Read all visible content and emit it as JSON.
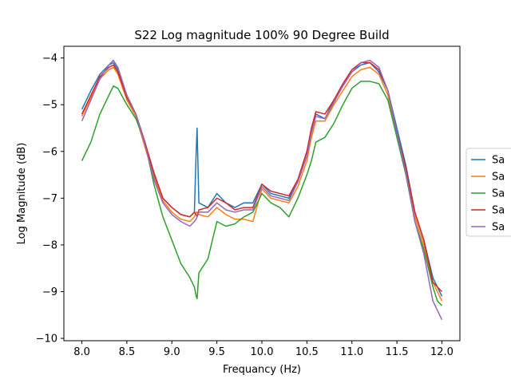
{
  "chart_data": {
    "type": "line",
    "title": "S22 Log magnitude 100% 90 Degree Build",
    "xlabel": "Frequancy (Hz)",
    "ylabel": "Log Magnitude (dB)",
    "xlim": [
      7.8,
      12.2
    ],
    "ylim": [
      -10.05,
      -3.75
    ],
    "x_ticks": [
      8.0,
      8.5,
      9.0,
      9.5,
      10.0,
      10.5,
      11.0,
      11.5,
      12.0
    ],
    "x_tick_labels": [
      "8.0",
      "8.5",
      "9.0",
      "9.5",
      "10.0",
      "10.5",
      "11.0",
      "11.5",
      "12.0"
    ],
    "y_ticks": [
      -10,
      -9,
      -8,
      -7,
      -6,
      -5,
      -4
    ],
    "y_tick_labels": [
      "−10",
      "−9",
      "−8",
      "−7",
      "−6",
      "−5",
      "−4"
    ],
    "grid": false,
    "legend_position": "right, partially cut off",
    "x": [
      8.0,
      8.1,
      8.2,
      8.3,
      8.35,
      8.4,
      8.5,
      8.6,
      8.7,
      8.8,
      8.9,
      9.0,
      9.1,
      9.2,
      9.25,
      9.27,
      9.28,
      9.3,
      9.4,
      9.5,
      9.6,
      9.7,
      9.8,
      9.9,
      10.0,
      10.1,
      10.2,
      10.3,
      10.4,
      10.5,
      10.55,
      10.6,
      10.7,
      10.8,
      10.9,
      11.0,
      11.1,
      11.2,
      11.3,
      11.4,
      11.5,
      11.6,
      11.7,
      11.8,
      11.9,
      11.95,
      12.0
    ],
    "series": [
      {
        "name": "Sa",
        "color": "#1f77b4",
        "values": [
          -5.1,
          -4.7,
          -4.35,
          -4.15,
          -4.1,
          -4.25,
          -4.8,
          -5.2,
          -5.8,
          -6.5,
          -7.0,
          -7.2,
          -7.35,
          -7.4,
          -7.3,
          -6.0,
          -5.5,
          -7.1,
          -7.2,
          -6.9,
          -7.1,
          -7.2,
          -7.1,
          -7.1,
          -6.7,
          -6.9,
          -6.95,
          -7.0,
          -6.6,
          -6.0,
          -5.6,
          -5.2,
          -5.3,
          -4.9,
          -4.6,
          -4.3,
          -4.15,
          -4.1,
          -4.3,
          -4.7,
          -5.5,
          -6.3,
          -7.3,
          -7.9,
          -8.7,
          -8.9,
          -9.1
        ]
      },
      {
        "name": "Sa",
        "color": "#ff7f0e",
        "values": [
          -5.25,
          -4.85,
          -4.45,
          -4.25,
          -4.2,
          -4.35,
          -4.9,
          -5.25,
          -5.9,
          -6.55,
          -7.05,
          -7.3,
          -7.45,
          -7.5,
          -7.4,
          -7.3,
          -7.3,
          -7.35,
          -7.4,
          -7.2,
          -7.35,
          -7.45,
          -7.45,
          -7.5,
          -6.8,
          -7.0,
          -7.05,
          -7.1,
          -6.75,
          -6.2,
          -5.7,
          -5.35,
          -5.35,
          -5.0,
          -4.7,
          -4.4,
          -4.25,
          -4.2,
          -4.35,
          -4.8,
          -5.6,
          -6.4,
          -7.4,
          -8.0,
          -8.8,
          -9.0,
          -9.2
        ]
      },
      {
        "name": "Sa",
        "color": "#2ca02c",
        "values": [
          -6.2,
          -5.8,
          -5.2,
          -4.8,
          -4.6,
          -4.65,
          -5.0,
          -5.3,
          -5.8,
          -6.7,
          -7.4,
          -7.9,
          -8.4,
          -8.7,
          -8.9,
          -9.1,
          -9.15,
          -8.6,
          -8.3,
          -7.5,
          -7.6,
          -7.55,
          -7.4,
          -7.3,
          -6.9,
          -7.1,
          -7.2,
          -7.4,
          -7.0,
          -6.5,
          -6.2,
          -5.8,
          -5.7,
          -5.4,
          -5.0,
          -4.65,
          -4.5,
          -4.5,
          -4.55,
          -4.9,
          -5.7,
          -6.5,
          -7.5,
          -8.1,
          -8.9,
          -9.2,
          -9.3
        ]
      },
      {
        "name": "Sa",
        "color": "#d62728",
        "values": [
          -5.2,
          -4.8,
          -4.4,
          -4.2,
          -4.15,
          -4.3,
          -4.85,
          -5.2,
          -5.8,
          -6.45,
          -7.0,
          -7.2,
          -7.35,
          -7.4,
          -7.3,
          -7.35,
          -7.4,
          -7.25,
          -7.2,
          -7.0,
          -7.1,
          -7.25,
          -7.2,
          -7.2,
          -6.7,
          -6.85,
          -6.9,
          -6.95,
          -6.6,
          -6.0,
          -5.5,
          -5.15,
          -5.2,
          -4.9,
          -4.55,
          -4.25,
          -4.1,
          -4.1,
          -4.25,
          -4.7,
          -5.6,
          -6.35,
          -7.3,
          -7.9,
          -8.8,
          -8.9,
          -9.0
        ]
      },
      {
        "name": "Sa",
        "color": "#9467bd",
        "values": [
          -5.35,
          -4.9,
          -4.45,
          -4.15,
          -4.05,
          -4.2,
          -4.8,
          -5.2,
          -5.85,
          -6.6,
          -7.1,
          -7.35,
          -7.5,
          -7.6,
          -7.5,
          -7.45,
          -7.4,
          -7.3,
          -7.3,
          -7.1,
          -7.25,
          -7.3,
          -7.25,
          -7.25,
          -6.75,
          -6.95,
          -7.0,
          -7.05,
          -6.65,
          -6.1,
          -5.6,
          -5.25,
          -5.3,
          -4.95,
          -4.6,
          -4.3,
          -4.1,
          -4.05,
          -4.2,
          -4.7,
          -5.6,
          -6.45,
          -7.5,
          -8.2,
          -9.2,
          -9.4,
          -9.6
        ]
      }
    ]
  }
}
